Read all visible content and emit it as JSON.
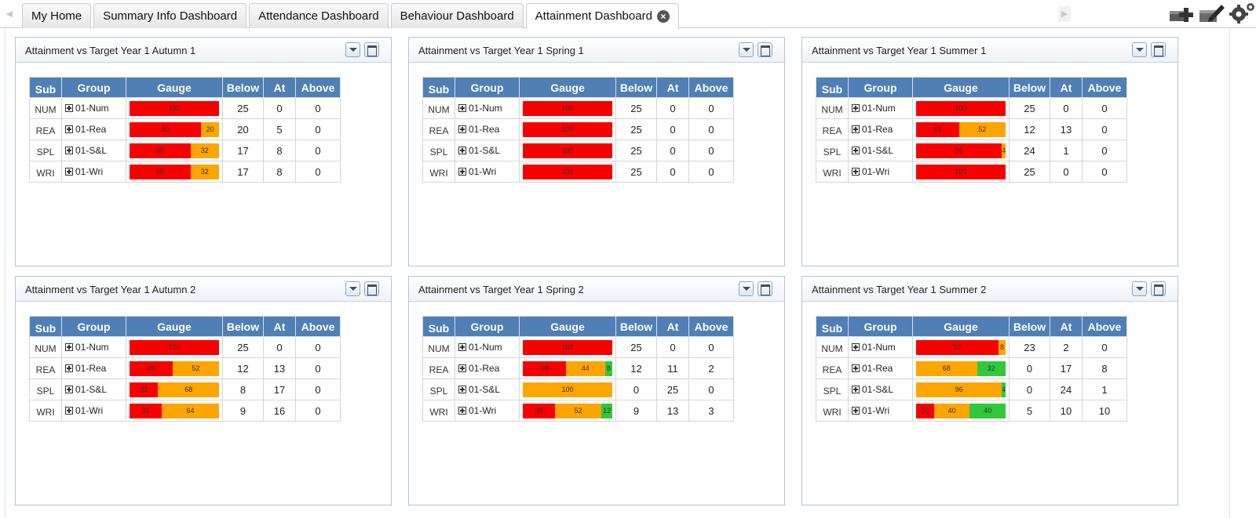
{
  "tabs": [
    {
      "label": "My Home",
      "active": false
    },
    {
      "label": "Summary Info Dashboard",
      "active": false
    },
    {
      "label": "Attendance Dashboard",
      "active": false
    },
    {
      "label": "Behaviour Dashboard",
      "active": false
    },
    {
      "label": "Attainment Dashboard",
      "active": true,
      "closable": true
    }
  ],
  "toolbar": {
    "icons": [
      "add-panel-icon",
      "edit-icon",
      "settings-icon"
    ]
  },
  "colors": {
    "below": "#f80000",
    "at": "#ffa500",
    "above": "#2fc93a",
    "header": "#4f7fb5"
  },
  "columns": [
    "Sub",
    "Group",
    "Gauge",
    "Below",
    "At",
    "Above"
  ],
  "panels": [
    {
      "title": "Attainment vs Target Year 1 Autumn 1",
      "rows": [
        {
          "sub": "NUM",
          "group": "01-Num",
          "below": 25,
          "at": 0,
          "above": 0,
          "gauge": [
            100,
            0,
            0
          ]
        },
        {
          "sub": "REA",
          "group": "01-Rea",
          "below": 20,
          "at": 5,
          "above": 0,
          "gauge": [
            80,
            20,
            0
          ]
        },
        {
          "sub": "SPL",
          "group": "01-S&L",
          "below": 17,
          "at": 8,
          "above": 0,
          "gauge": [
            68,
            32,
            0
          ]
        },
        {
          "sub": "WRI",
          "group": "01-Wri",
          "below": 17,
          "at": 8,
          "above": 0,
          "gauge": [
            68,
            32,
            0
          ]
        }
      ]
    },
    {
      "title": "Attainment vs Target Year 1 Spring 1",
      "rows": [
        {
          "sub": "NUM",
          "group": "01-Num",
          "below": 25,
          "at": 0,
          "above": 0,
          "gauge": [
            100,
            0,
            0
          ]
        },
        {
          "sub": "REA",
          "group": "01-Rea",
          "below": 25,
          "at": 0,
          "above": 0,
          "gauge": [
            100,
            0,
            0
          ]
        },
        {
          "sub": "SPL",
          "group": "01-S&L",
          "below": 25,
          "at": 0,
          "above": 0,
          "gauge": [
            100,
            0,
            0
          ]
        },
        {
          "sub": "WRI",
          "group": "01-Wri",
          "below": 25,
          "at": 0,
          "above": 0,
          "gauge": [
            100,
            0,
            0
          ]
        }
      ]
    },
    {
      "title": "Attainment vs Target Year 1 Summer 1",
      "rows": [
        {
          "sub": "NUM",
          "group": "01-Num",
          "below": 25,
          "at": 0,
          "above": 0,
          "gauge": [
            100,
            0,
            0
          ]
        },
        {
          "sub": "REA",
          "group": "01-Rea",
          "below": 12,
          "at": 13,
          "above": 0,
          "gauge": [
            48,
            52,
            0
          ]
        },
        {
          "sub": "SPL",
          "group": "01-S&L",
          "below": 24,
          "at": 1,
          "above": 0,
          "gauge": [
            96,
            4,
            0
          ]
        },
        {
          "sub": "WRI",
          "group": "01-Wri",
          "below": 25,
          "at": 0,
          "above": 0,
          "gauge": [
            100,
            0,
            0
          ]
        }
      ]
    },
    {
      "title": "Attainment vs Target Year 1 Autumn 2",
      "rows": [
        {
          "sub": "NUM",
          "group": "01-Num",
          "below": 25,
          "at": 0,
          "above": 0,
          "gauge": [
            100,
            0,
            0
          ]
        },
        {
          "sub": "REA",
          "group": "01-Rea",
          "below": 12,
          "at": 13,
          "above": 0,
          "gauge": [
            48,
            52,
            0
          ]
        },
        {
          "sub": "SPL",
          "group": "01-S&L",
          "below": 8,
          "at": 17,
          "above": 0,
          "gauge": [
            32,
            68,
            0
          ]
        },
        {
          "sub": "WRI",
          "group": "01-Wri",
          "below": 9,
          "at": 16,
          "above": 0,
          "gauge": [
            36,
            64,
            0
          ]
        }
      ]
    },
    {
      "title": "Attainment vs Target Year 1 Spring 2",
      "rows": [
        {
          "sub": "NUM",
          "group": "01-Num",
          "below": 25,
          "at": 0,
          "above": 0,
          "gauge": [
            100,
            0,
            0
          ]
        },
        {
          "sub": "REA",
          "group": "01-Rea",
          "below": 12,
          "at": 11,
          "above": 2,
          "gauge": [
            48,
            44,
            8
          ]
        },
        {
          "sub": "SPL",
          "group": "01-S&L",
          "below": 0,
          "at": 25,
          "above": 0,
          "gauge": [
            0,
            100,
            0
          ]
        },
        {
          "sub": "WRI",
          "group": "01-Wri",
          "below": 9,
          "at": 13,
          "above": 3,
          "gauge": [
            36,
            52,
            12
          ]
        }
      ]
    },
    {
      "title": "Attainment vs Target Year 1 Summer 2",
      "rows": [
        {
          "sub": "NUM",
          "group": "01-Num",
          "below": 23,
          "at": 2,
          "above": 0,
          "gauge": [
            92,
            8,
            0
          ]
        },
        {
          "sub": "REA",
          "group": "01-Rea",
          "below": 0,
          "at": 17,
          "above": 8,
          "gauge": [
            0,
            68,
            32
          ]
        },
        {
          "sub": "SPL",
          "group": "01-S&L",
          "below": 0,
          "at": 24,
          "above": 1,
          "gauge": [
            0,
            96,
            4
          ]
        },
        {
          "sub": "WRI",
          "group": "01-Wri",
          "below": 5,
          "at": 10,
          "above": 10,
          "gauge": [
            20,
            40,
            40
          ]
        }
      ]
    }
  ]
}
